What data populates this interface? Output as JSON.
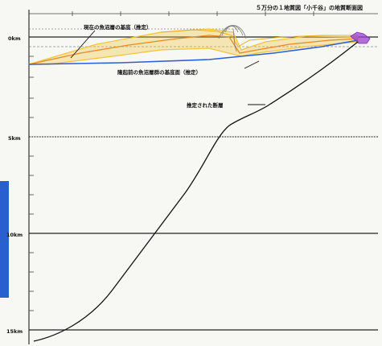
{
  "title": "５万分の１地質図「小千谷」の地質断面図",
  "depth_axis": {
    "labels": [
      "0km",
      "5km",
      "10km",
      "15km"
    ]
  },
  "annotations": {
    "current_base": "現在の魚沼層の基底（推定）",
    "pre_uplift_base": "隆起前の魚沼層群の基底面（推定）",
    "fault": "推定された断層"
  },
  "colors": {
    "background": "#f7f7f3",
    "grid_line": "#222222",
    "fault_line": "#111111",
    "yellow_layer": "#f0c43a",
    "orange_layer": "#e48a2a",
    "blue_base": "#2f5fd6",
    "purple_mass": "#9a3fd0",
    "side_strip": "#2a5fd0"
  }
}
